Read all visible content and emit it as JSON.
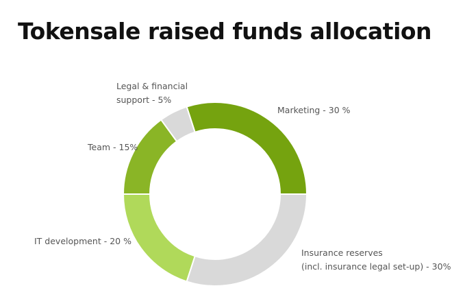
{
  "chart_data": {
    "type": "pie",
    "title": "Tokensale raised funds allocation",
    "donut": true,
    "slices": [
      {
        "label": "Marketing - 30 %",
        "lines": [
          "Marketing - 30 %"
        ],
        "value": 30,
        "color": "#75a30f"
      },
      {
        "label": "Insurance reserves (incl. insurance legal set-up) - 30%",
        "lines": [
          "Insurance reserves",
          "(incl. insurance legal set-up) - 30%"
        ],
        "value": 30,
        "color": "#d9d9d9"
      },
      {
        "label": "IT development - 20 %",
        "lines": [
          "IT development - 20 %"
        ],
        "value": 20,
        "color": "#b0d95a"
      },
      {
        "label": "Team - 15%",
        "lines": [
          "Team - 15%"
        ],
        "value": 15,
        "color": "#8ab526"
      },
      {
        "label": "Legal & financial support - 5%",
        "lines": [
          "Legal & financial",
          "support - 5%"
        ],
        "value": 5,
        "color": "#d9d9d9"
      }
    ]
  }
}
